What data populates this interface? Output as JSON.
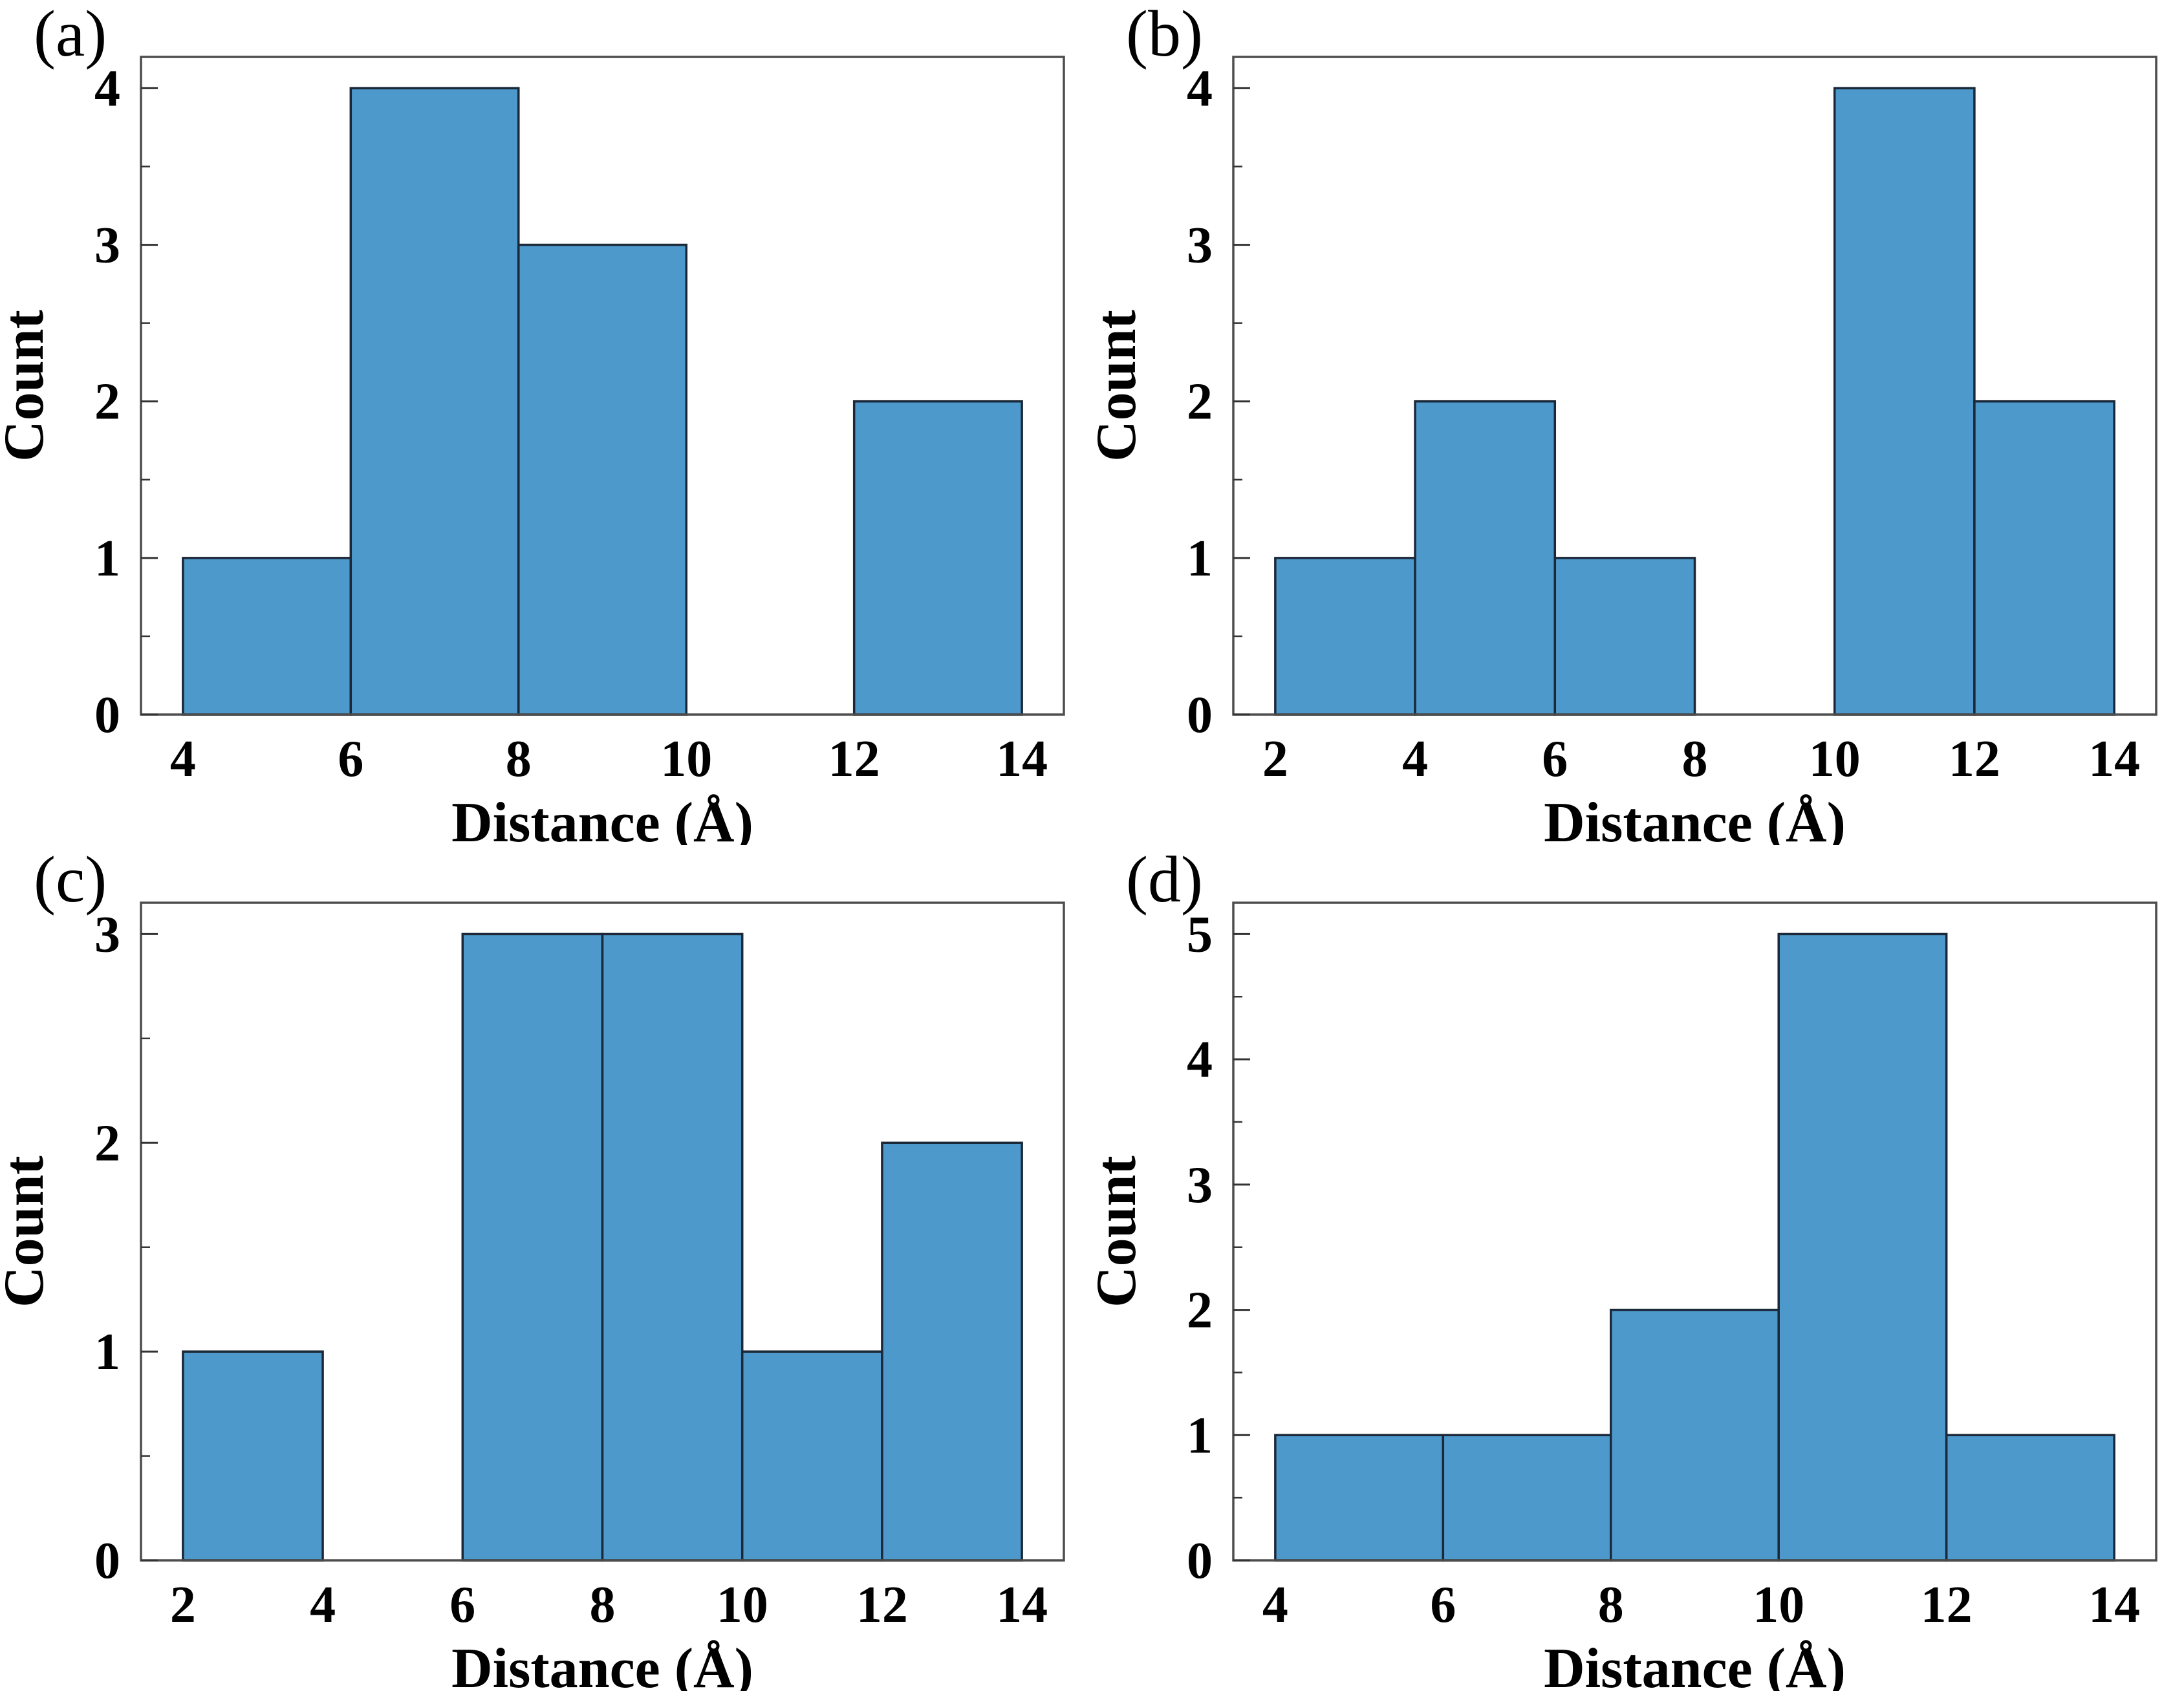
{
  "figure": {
    "background": "#ffffff",
    "text_color": "#000000"
  },
  "style": {
    "bar_fill": "#4d99cc",
    "bar_edge": "#1b2838",
    "spine_color": "#4d4d4d",
    "tick_color": "#333333",
    "y_minor_step": 0.5
  },
  "chart_data": [
    {
      "type": "bar",
      "panel_label": "(a)",
      "xlabel": "Distance (Å)",
      "ylabel": "Count",
      "bin_start": 4,
      "bin_width": 2,
      "bin_edges": [
        4,
        6,
        8,
        10,
        12,
        14
      ],
      "counts": [
        1,
        4,
        3,
        0,
        2
      ],
      "xticks": [
        4,
        6,
        8,
        10,
        12,
        14
      ],
      "yticks": [
        0,
        1,
        2,
        3,
        4
      ],
      "xlim": [
        3.5,
        14.5
      ],
      "ylim": [
        0,
        4.2
      ],
      "grid": false,
      "legend": "none"
    },
    {
      "type": "bar",
      "panel_label": "(b)",
      "xlabel": "Distance (Å)",
      "ylabel": "Count",
      "bin_start": 2,
      "bin_width": 2,
      "bin_edges": [
        2,
        4,
        6,
        8,
        10,
        12,
        14
      ],
      "counts": [
        1,
        2,
        1,
        0,
        4,
        2
      ],
      "xticks": [
        2,
        4,
        6,
        8,
        10,
        12,
        14
      ],
      "yticks": [
        0,
        1,
        2,
        3,
        4
      ],
      "xlim": [
        1.4,
        14.6
      ],
      "ylim": [
        0,
        4.2
      ],
      "grid": false,
      "legend": "none"
    },
    {
      "type": "bar",
      "panel_label": "(c)",
      "xlabel": "Distance (Å)",
      "ylabel": "Count",
      "bin_start": 2,
      "bin_width": 2,
      "bin_edges": [
        2,
        4,
        6,
        8,
        10,
        12,
        14
      ],
      "counts": [
        1,
        0,
        3,
        3,
        1,
        2
      ],
      "xticks": [
        2,
        4,
        6,
        8,
        10,
        12,
        14
      ],
      "yticks": [
        0,
        1,
        2,
        3
      ],
      "xlim": [
        1.4,
        14.6
      ],
      "ylim": [
        0,
        3.15
      ],
      "grid": false,
      "legend": "none"
    },
    {
      "type": "bar",
      "panel_label": "(d)",
      "xlabel": "Distance (Å)",
      "ylabel": "Count",
      "bin_start": 4,
      "bin_width": 2,
      "bin_edges": [
        4,
        6,
        8,
        10,
        12,
        14
      ],
      "counts": [
        1,
        1,
        2,
        5,
        1
      ],
      "xticks": [
        4,
        6,
        8,
        10,
        12,
        14
      ],
      "yticks": [
        0,
        1,
        2,
        3,
        4,
        5
      ],
      "xlim": [
        3.5,
        14.5
      ],
      "ylim": [
        0,
        5.25
      ],
      "grid": false,
      "legend": "none"
    }
  ]
}
